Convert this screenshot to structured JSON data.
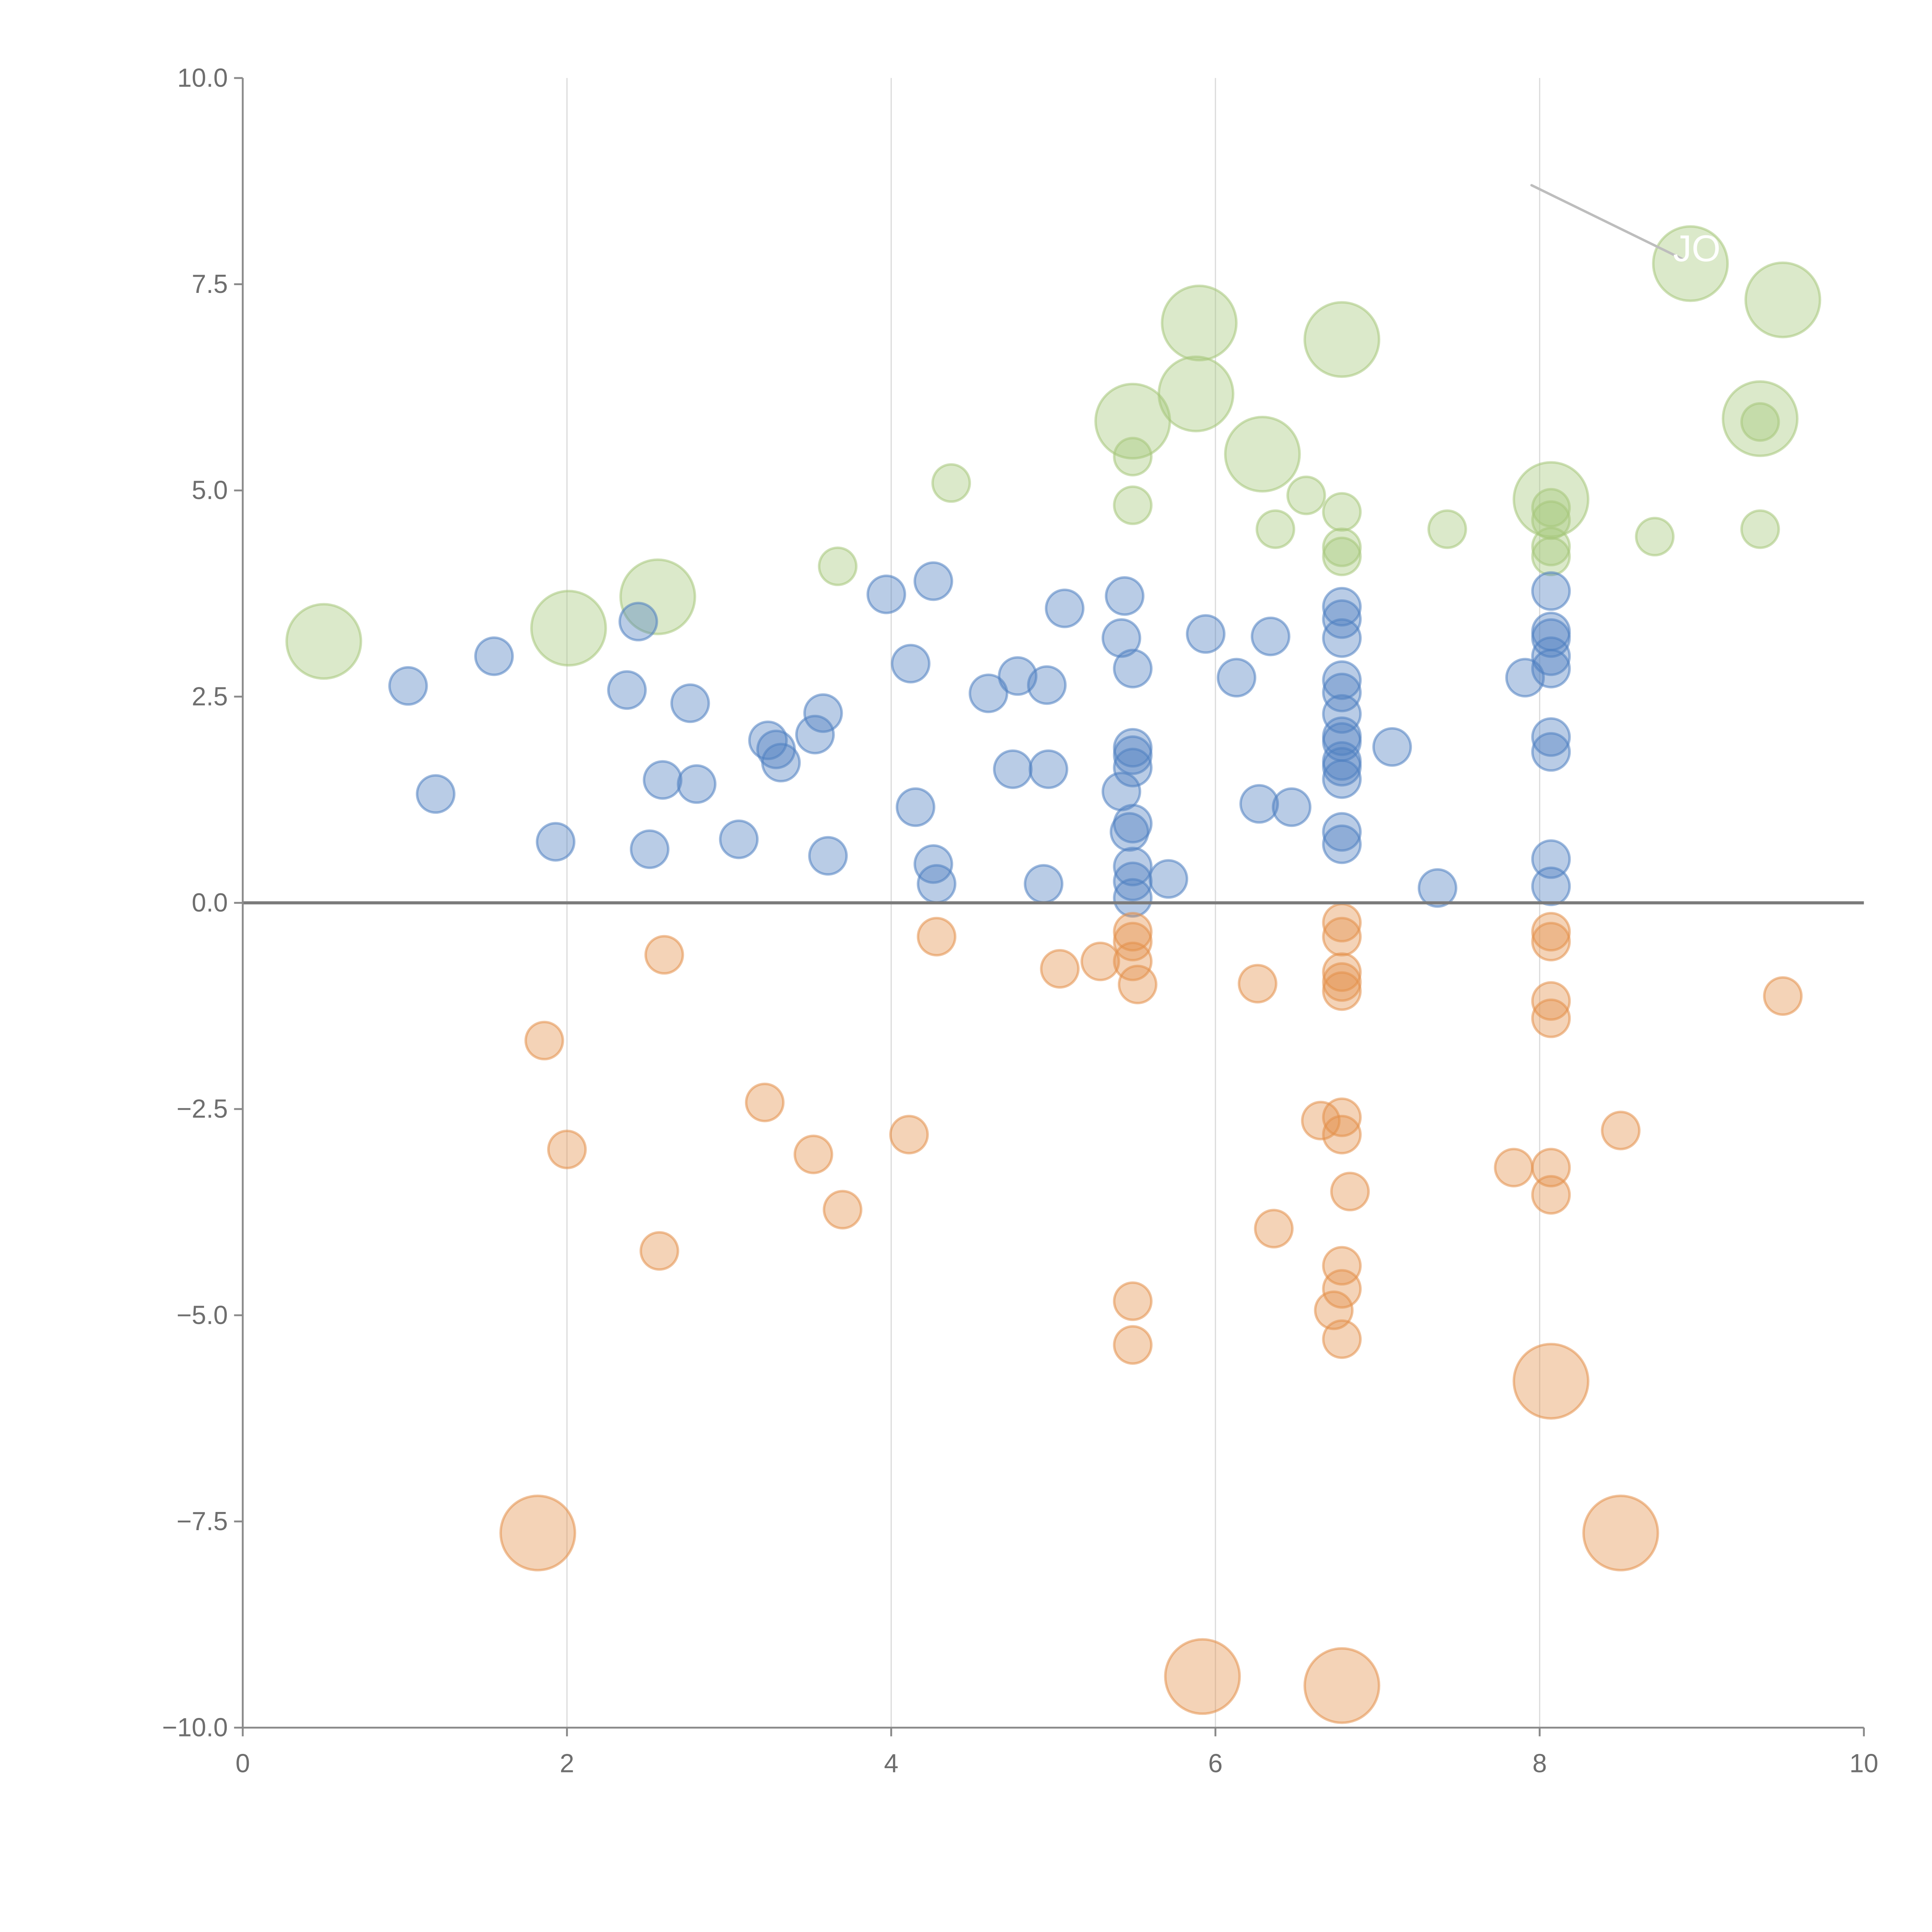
{
  "chart_data": {
    "type": "scatter",
    "title": "",
    "xlabel": "",
    "ylabel": "",
    "xlim": [
      0,
      10
    ],
    "ylim": [
      -10,
      10
    ],
    "grid": "vertical",
    "xticks": [
      "0",
      "2",
      "4",
      "6",
      "8",
      "10"
    ],
    "xtick_values": [
      0,
      2,
      4,
      6,
      8,
      10
    ],
    "yticks": [
      "10.0",
      "7.5",
      "5.0",
      "2.5",
      "0.0",
      "−2.5",
      "−5.0",
      "−7.5",
      "−10.0"
    ],
    "ytick_values": [
      10,
      7.5,
      5,
      2.5,
      0,
      -2.5,
      -5,
      -7.5,
      -10
    ],
    "annotation": {
      "text": "JO",
      "x": 8.93,
      "y": 7.75,
      "from": [
        7.95,
        8.7
      ]
    },
    "series": [
      {
        "name": "green",
        "color": "#a6c77a",
        "points": [
          [
            0.5,
            3.17,
            2
          ],
          [
            2.01,
            3.33,
            2
          ],
          [
            2.56,
            3.71,
            2
          ],
          [
            5.49,
            5.84,
            2
          ],
          [
            5.88,
            6.17,
            2
          ],
          [
            5.9,
            7.03,
            2
          ],
          [
            6.29,
            5.44,
            2
          ],
          [
            6.78,
            6.83,
            2
          ],
          [
            8.07,
            4.89,
            2
          ],
          [
            8.93,
            7.75,
            2
          ],
          [
            9.5,
            7.31,
            2
          ],
          [
            9.36,
            5.87,
            2
          ],
          [
            4.37,
            5.09,
            1
          ],
          [
            3.67,
            4.08,
            1
          ],
          [
            5.49,
            5.41,
            1
          ],
          [
            5.49,
            4.82,
            1
          ],
          [
            6.37,
            4.53,
            1
          ],
          [
            6.56,
            4.94,
            1
          ],
          [
            6.78,
            4.74,
            1
          ],
          [
            6.78,
            4.31,
            1
          ],
          [
            6.78,
            4.2,
            1
          ],
          [
            7.43,
            4.53,
            1
          ],
          [
            8.07,
            4.79,
            1
          ],
          [
            8.07,
            4.64,
            1
          ],
          [
            8.07,
            4.32,
            1
          ],
          [
            8.07,
            4.2,
            1
          ],
          [
            8.71,
            4.44,
            1
          ],
          [
            9.36,
            5.83,
            1
          ],
          [
            9.36,
            4.53,
            1
          ]
        ]
      },
      {
        "name": "blue",
        "color": "#4f7fc1",
        "points": [
          [
            1.02,
            2.63,
            1
          ],
          [
            1.19,
            1.32,
            1
          ],
          [
            1.55,
            2.99,
            1
          ],
          [
            1.93,
            0.74,
            1
          ],
          [
            2.37,
            2.58,
            1
          ],
          [
            2.44,
            3.41,
            1
          ],
          [
            2.51,
            0.65,
            1
          ],
          [
            2.59,
            1.49,
            1
          ],
          [
            2.76,
            2.42,
            1
          ],
          [
            2.8,
            1.44,
            1
          ],
          [
            3.06,
            0.77,
            1
          ],
          [
            3.24,
            1.97,
            1
          ],
          [
            3.29,
            1.86,
            1
          ],
          [
            3.32,
            1.7,
            1
          ],
          [
            3.53,
            2.04,
            1
          ],
          [
            3.58,
            2.3,
            1
          ],
          [
            3.61,
            0.57,
            1
          ],
          [
            3.97,
            3.74,
            1
          ],
          [
            4.12,
            2.9,
            1
          ],
          [
            4.15,
            1.16,
            1
          ],
          [
            4.26,
            3.9,
            1
          ],
          [
            4.26,
            0.47,
            1
          ],
          [
            4.28,
            0.23,
            1
          ],
          [
            4.6,
            2.54,
            1
          ],
          [
            4.75,
            1.62,
            1
          ],
          [
            4.78,
            2.75,
            1
          ],
          [
            4.94,
            0.23,
            1
          ],
          [
            4.96,
            2.64,
            1
          ],
          [
            4.97,
            1.62,
            1
          ],
          [
            5.07,
            3.57,
            1
          ],
          [
            5.42,
            3.21,
            1
          ],
          [
            5.42,
            1.35,
            1
          ],
          [
            5.44,
            3.72,
            1
          ],
          [
            5.47,
            0.86,
            1
          ],
          [
            5.49,
            2.84,
            1
          ],
          [
            5.49,
            1.88,
            1
          ],
          [
            5.49,
            1.79,
            1
          ],
          [
            5.49,
            1.64,
            1
          ],
          [
            5.49,
            0.96,
            1
          ],
          [
            5.49,
            0.44,
            1
          ],
          [
            5.49,
            0.26,
            1
          ],
          [
            5.49,
            0.06,
            1
          ],
          [
            5.71,
            0.29,
            1
          ],
          [
            5.94,
            3.26,
            1
          ],
          [
            6.13,
            2.73,
            1
          ],
          [
            6.27,
            1.2,
            1
          ],
          [
            6.34,
            3.23,
            1
          ],
          [
            6.47,
            1.16,
            1
          ],
          [
            6.78,
            3.59,
            1
          ],
          [
            6.78,
            3.44,
            1
          ],
          [
            6.78,
            3.21,
            1
          ],
          [
            6.78,
            2.7,
            1
          ],
          [
            6.78,
            2.55,
            1
          ],
          [
            6.78,
            2.29,
            1
          ],
          [
            6.78,
            2.02,
            1
          ],
          [
            6.78,
            1.95,
            1
          ],
          [
            6.78,
            1.72,
            1
          ],
          [
            6.78,
            1.65,
            1
          ],
          [
            6.78,
            1.5,
            1
          ],
          [
            6.78,
            0.86,
            1
          ],
          [
            6.78,
            0.71,
            1
          ],
          [
            7.09,
            1.89,
            1
          ],
          [
            7.37,
            0.18,
            1
          ],
          [
            7.91,
            2.73,
            1
          ],
          [
            8.07,
            3.78,
            1
          ],
          [
            8.07,
            3.29,
            1
          ],
          [
            8.07,
            3.21,
            1
          ],
          [
            8.07,
            2.99,
            1
          ],
          [
            8.07,
            2.84,
            1
          ],
          [
            8.07,
            2.01,
            1
          ],
          [
            8.07,
            1.83,
            1
          ],
          [
            8.07,
            0.53,
            1
          ],
          [
            8.07,
            0.2,
            1
          ]
        ]
      },
      {
        "name": "orange",
        "color": "#e3904a",
        "points": [
          [
            2.6,
            -0.63,
            1
          ],
          [
            1.86,
            -1.67,
            1
          ],
          [
            2.0,
            -2.99,
            1
          ],
          [
            2.57,
            -4.22,
            1
          ],
          [
            3.22,
            -2.42,
            1
          ],
          [
            3.52,
            -3.05,
            1
          ],
          [
            3.7,
            -3.72,
            1
          ],
          [
            4.11,
            -2.81,
            1
          ],
          [
            4.28,
            -0.41,
            1
          ],
          [
            5.04,
            -0.8,
            1
          ],
          [
            5.29,
            -0.71,
            1
          ],
          [
            5.49,
            -0.35,
            1
          ],
          [
            5.49,
            -0.47,
            1
          ],
          [
            5.49,
            -0.71,
            1
          ],
          [
            5.52,
            -0.99,
            1
          ],
          [
            5.49,
            -4.83,
            1
          ],
          [
            5.49,
            -5.36,
            1
          ],
          [
            6.26,
            -0.98,
            1
          ],
          [
            6.36,
            -3.95,
            1
          ],
          [
            6.65,
            -2.64,
            1
          ],
          [
            6.73,
            -4.94,
            1
          ],
          [
            6.78,
            -0.24,
            1
          ],
          [
            6.78,
            -0.41,
            1
          ],
          [
            6.78,
            -0.84,
            1
          ],
          [
            6.78,
            -0.96,
            1
          ],
          [
            6.78,
            -1.07,
            1
          ],
          [
            6.78,
            -2.6,
            1
          ],
          [
            6.78,
            -2.81,
            1
          ],
          [
            6.78,
            -4.4,
            1
          ],
          [
            6.78,
            -4.68,
            1
          ],
          [
            6.78,
            -5.29,
            1
          ],
          [
            6.83,
            -3.5,
            1
          ],
          [
            7.84,
            -3.21,
            1
          ],
          [
            8.07,
            -0.35,
            1
          ],
          [
            8.07,
            -0.47,
            1
          ],
          [
            8.07,
            -1.19,
            1
          ],
          [
            8.07,
            -1.4,
            1
          ],
          [
            8.07,
            -3.21,
            1
          ],
          [
            8.07,
            -3.54,
            1
          ],
          [
            8.5,
            -2.76,
            1
          ],
          [
            9.5,
            -1.13,
            1
          ],
          [
            1.82,
            -7.64,
            2
          ],
          [
            5.92,
            -9.38,
            2
          ],
          [
            6.78,
            -9.49,
            2
          ],
          [
            8.07,
            -5.8,
            2
          ],
          [
            8.5,
            -7.64,
            2
          ]
        ]
      }
    ]
  }
}
